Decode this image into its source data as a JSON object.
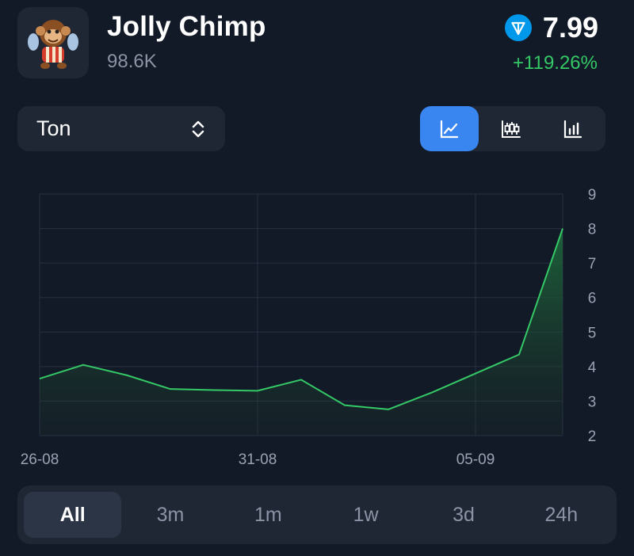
{
  "coin": {
    "name": "Jolly Chimp",
    "volume": "98.6K",
    "price": "7.99",
    "change": "+119.26%",
    "logo_icon": "chimp-logo",
    "currency_icon": "ton-icon"
  },
  "currency_select": {
    "value": "Ton",
    "icon": "chevron-up-down-icon"
  },
  "chart_types": [
    {
      "icon": "line-chart-icon",
      "active": true
    },
    {
      "icon": "candlestick-icon",
      "active": false
    },
    {
      "icon": "bar-chart-icon",
      "active": false
    }
  ],
  "ranges": [
    {
      "label": "All",
      "active": true
    },
    {
      "label": "3m",
      "active": false
    },
    {
      "label": "1m",
      "active": false
    },
    {
      "label": "1w",
      "active": false
    },
    {
      "label": "3d",
      "active": false
    },
    {
      "label": "24h",
      "active": false
    }
  ],
  "colors": {
    "background": "#131a27",
    "panel": "#1f2735",
    "accent": "#3a86f0",
    "positive": "#34c866",
    "muted": "#8b93a5"
  },
  "chart_data": {
    "type": "area",
    "x": [
      "26-08",
      "27-08",
      "28-08",
      "29-08",
      "30-08",
      "31-08",
      "01-09",
      "02-09",
      "03-09",
      "04-09",
      "05-09",
      "06-09",
      "07-09"
    ],
    "values": [
      3.65,
      4.05,
      3.75,
      3.35,
      3.32,
      3.3,
      3.62,
      2.88,
      2.76,
      3.25,
      3.8,
      4.35,
      8.0
    ],
    "x_ticks": [
      "26-08",
      "31-08",
      "05-09"
    ],
    "y_ticks": [
      "2",
      "3",
      "4",
      "5",
      "6",
      "7",
      "8",
      "9"
    ],
    "ylim": [
      2,
      9
    ],
    "grid": true,
    "y_axis_side": "right",
    "line_color": "#34c866"
  }
}
